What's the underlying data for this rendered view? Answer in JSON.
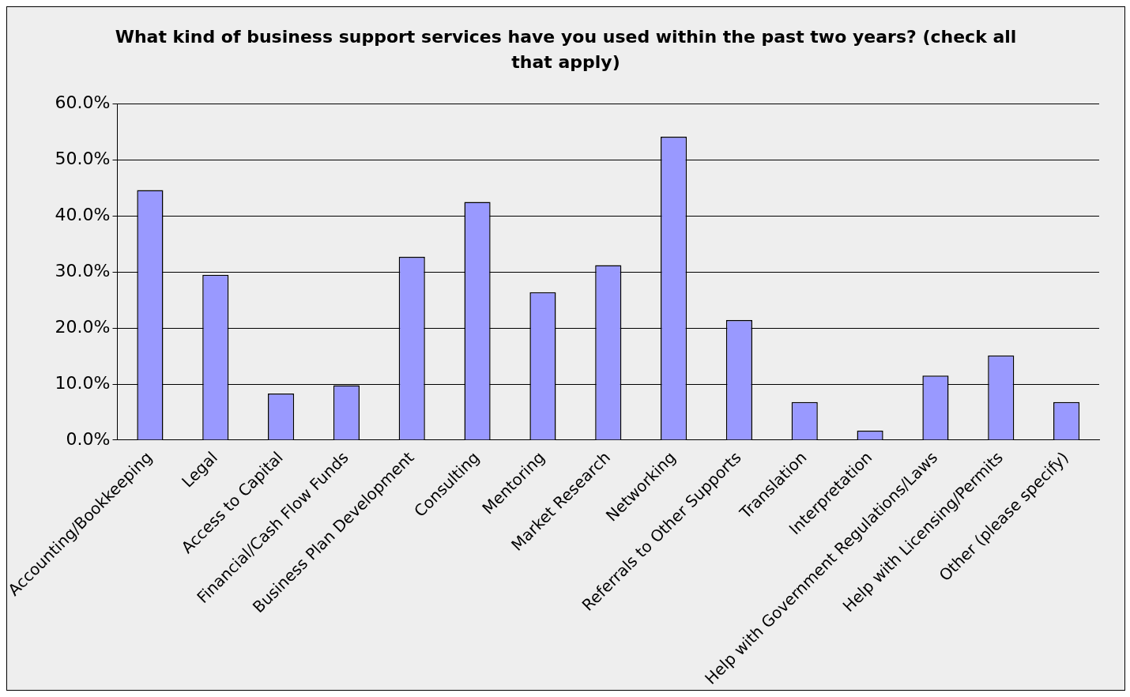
{
  "chart_data": {
    "type": "bar",
    "title": "What kind of business support services have you used within the past two years?  (check all that apply)",
    "categories": [
      "Accounting/Bookkeeping",
      "Legal",
      "Access to Capital",
      "Financial/Cash Flow Funds",
      "Business Plan Development",
      "Consulting",
      "Mentoring",
      "Market Research",
      "Networking",
      "Referrals to Other Supports",
      "Translation",
      "Interpretation",
      "Help with Government Regulations/Laws",
      "Help with Licensing/Permits",
      "Other (please specify)"
    ],
    "values": [
      44.6,
      29.5,
      8.3,
      9.8,
      32.7,
      42.5,
      26.4,
      31.2,
      54.1,
      21.4,
      6.8,
      1.7,
      11.5,
      15.1,
      6.8
    ],
    "color": "#9999ff",
    "ylim": [
      0,
      60
    ],
    "yticks": [
      {
        "value": 0,
        "label": "0.0%"
      },
      {
        "value": 10,
        "label": "10.0%"
      },
      {
        "value": 20,
        "label": "20.0%"
      },
      {
        "value": 30,
        "label": "30.0%"
      },
      {
        "value": 40,
        "label": "40.0%"
      },
      {
        "value": 50,
        "label": "50.0%"
      },
      {
        "value": 60,
        "label": "60.0%"
      }
    ],
    "grid": "y"
  }
}
